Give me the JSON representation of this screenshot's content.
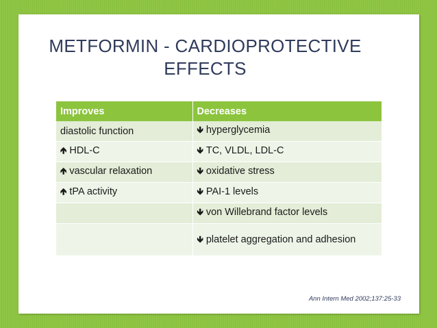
{
  "slide": {
    "title_line1": "METFORMIN - CARDIOPROTECTIVE",
    "title_line2": "EFFECTS",
    "citation": "Ann Intern Med 2002;137:25-33"
  },
  "table": {
    "headers": [
      "Improves",
      "Decreases"
    ],
    "rows": [
      {
        "improves": "diastolic function",
        "improves_arrow": "",
        "decreases": "hyperglycemia",
        "decreases_arrow": "down-arrow"
      },
      {
        "improves": "HDL-C",
        "improves_arrow": "up-arrow",
        "decreases": "TC, VLDL, LDL-C",
        "decreases_arrow": "down-arrow"
      },
      {
        "improves": "vascular relaxation",
        "improves_arrow": "up-arrow",
        "decreases": "oxidative stress",
        "decreases_arrow": "down-arrow"
      },
      {
        "improves": "tPA activity",
        "improves_arrow": "up-arrow",
        "decreases": "PAI-1 levels",
        "decreases_arrow": "down-arrow"
      },
      {
        "improves": "",
        "improves_arrow": "",
        "decreases": "von Willebrand factor levels",
        "decreases_arrow": "down-arrow"
      },
      {
        "improves": "",
        "improves_arrow": "",
        "decreases": "platelet aggregation and adhesion",
        "decreases_arrow": "down-arrow"
      }
    ]
  },
  "colors": {
    "background": "#8cc43e",
    "header_fill": "#8cc43e",
    "title_text": "#2f3b5b",
    "row_odd": "#e3edd7",
    "row_even": "#eef5e8"
  }
}
